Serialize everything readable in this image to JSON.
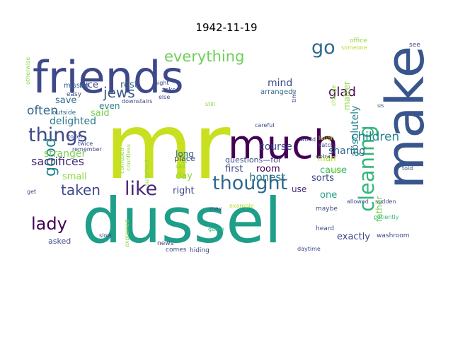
{
  "title": "1942-11-19",
  "palette": [
    "#440154",
    "#482878",
    "#3e4989",
    "#31688e",
    "#26828e",
    "#1f9e89",
    "#35b779",
    "#6ece58",
    "#b5de2b",
    "#fde725"
  ],
  "words": [
    {
      "text": "mr",
      "color": "#c8e020"
    },
    {
      "text": "dussel",
      "color": "#1f9e89"
    },
    {
      "text": "friends",
      "color": "#3e4989"
    },
    {
      "text": "make",
      "color": "#39568c"
    },
    {
      "text": "much",
      "color": "#440154"
    },
    {
      "text": "things",
      "color": "#3e4989"
    },
    {
      "text": "thought",
      "color": "#31688e"
    },
    {
      "text": "cleaning",
      "color": "#35b779"
    },
    {
      "text": "everything",
      "color": "#6ece58"
    },
    {
      "text": "children",
      "color": "#26828e"
    },
    {
      "text": "good",
      "color": "#26828e"
    },
    {
      "text": "lady",
      "color": "#440154"
    },
    {
      "text": "taken",
      "color": "#3e4989"
    },
    {
      "text": "like",
      "color": "#482878"
    },
    {
      "text": "go",
      "color": "#31688e"
    },
    {
      "text": "jews",
      "color": "#39568c"
    },
    {
      "text": "often",
      "color": "#31688e"
    },
    {
      "text": "sacrifices",
      "color": "#482878"
    },
    {
      "text": "stranger",
      "color": "#7ad151"
    },
    {
      "text": "delighted",
      "color": "#2a788e"
    },
    {
      "text": "honest",
      "color": "#2a788e"
    },
    {
      "text": "course",
      "color": "#3e4989"
    },
    {
      "text": "sharing",
      "color": "#31688e"
    },
    {
      "text": "absolutely",
      "color": "#26828e"
    },
    {
      "text": "glad",
      "color": "#440154"
    },
    {
      "text": "mind",
      "color": "#3e4989"
    },
    {
      "text": "rest",
      "color": "#31688e"
    },
    {
      "text": "nice",
      "color": "#3e4989"
    },
    {
      "text": "save",
      "color": "#31688e"
    },
    {
      "text": "said",
      "color": "#7ad151"
    },
    {
      "text": "even",
      "color": "#26828e"
    },
    {
      "text": "small",
      "color": "#8fd744"
    },
    {
      "text": "right",
      "color": "#3e4989"
    },
    {
      "text": "first",
      "color": "#3e4989"
    },
    {
      "text": "room",
      "color": "#440154"
    },
    {
      "text": "day",
      "color": "#8fd744"
    },
    {
      "text": "one",
      "color": "#1f9e89"
    },
    {
      "text": "sorts",
      "color": "#3e4989"
    },
    {
      "text": "cause",
      "color": "#35b779"
    },
    {
      "text": "father",
      "color": "#7ad151"
    },
    {
      "text": "exactly",
      "color": "#3e4989"
    },
    {
      "text": "use",
      "color": "#482878"
    },
    {
      "text": "man",
      "color": "#b5de2b"
    },
    {
      "text": "matter",
      "color": "#8fd744"
    },
    {
      "text": "long",
      "color": "#31688e"
    },
    {
      "text": "place",
      "color": "#3e4989"
    },
    {
      "text": "asked",
      "color": "#3e4989"
    },
    {
      "text": "questions—for",
      "color": "#3e4989"
    },
    {
      "text": "arranged",
      "color": "#31688e"
    },
    {
      "text": "missed",
      "color": "#31688e"
    },
    {
      "text": "easy",
      "color": "#3e4989"
    },
    {
      "text": "outside",
      "color": "#31688e"
    },
    {
      "text": "asks",
      "color": "#3e4989"
    },
    {
      "text": "maybe",
      "color": "#3e4989"
    },
    {
      "text": "heard",
      "color": "#3e4989"
    },
    {
      "text": "washroom",
      "color": "#3e4989"
    },
    {
      "text": "patiently",
      "color": "#35b779"
    },
    {
      "text": "allowed",
      "color": "#3e4989"
    },
    {
      "text": "sudden",
      "color": "#3e4989"
    },
    {
      "text": "told",
      "color": "#3e4989"
    },
    {
      "text": "news",
      "color": "#3e4989"
    },
    {
      "text": "hiding",
      "color": "#3e4989"
    },
    {
      "text": "comes",
      "color": "#3e4989"
    },
    {
      "text": "daytime",
      "color": "#3e4989"
    },
    {
      "text": "going",
      "color": "#35b779"
    },
    {
      "text": "explained",
      "color": "#8fd744"
    },
    {
      "text": "slow",
      "color": "#3e4989"
    },
    {
      "text": "countless",
      "color": "#8fd744"
    },
    {
      "text": "confused",
      "color": "#8fd744"
    },
    {
      "text": "surprised",
      "color": "#8fd744"
    },
    {
      "text": "fine",
      "color": "#8fd744"
    },
    {
      "text": "sad",
      "color": "#8fd744"
    },
    {
      "text": "twice",
      "color": "#3e4989"
    },
    {
      "text": "remember",
      "color": "#3e4989"
    },
    {
      "text": "toilet",
      "color": "#3e4989"
    },
    {
      "text": "downstairs",
      "color": "#3e4989"
    },
    {
      "text": "night",
      "color": "#3e4989"
    },
    {
      "text": "else",
      "color": "#3e4989"
    },
    {
      "text": "still",
      "color": "#8fd744"
    },
    {
      "text": "careful",
      "color": "#3e4989"
    },
    {
      "text": "world",
      "color": "#3e4989"
    },
    {
      "text": "laugh",
      "color": "#b5de2b"
    },
    {
      "text": "catch",
      "color": "#3e4989"
    },
    {
      "text": "extra",
      "color": "#3e4989"
    },
    {
      "text": "noise",
      "color": "#b5de2b"
    },
    {
      "text": "office",
      "color": "#8fd744"
    },
    {
      "text": "someone",
      "color": "#b5de2b"
    },
    {
      "text": "see",
      "color": "#3e4989"
    },
    {
      "text": "get",
      "color": "#3e4989"
    },
    {
      "text": "otherwise",
      "color": "#8fd744"
    },
    {
      "text": "example",
      "color": "#b5de2b"
    },
    {
      "text": "change",
      "color": "#8fd744"
    },
    {
      "text": "time",
      "color": "#3e4989"
    },
    {
      "text": "may",
      "color": "#3e4989"
    },
    {
      "text": "us",
      "color": "#3e4989"
    }
  ]
}
